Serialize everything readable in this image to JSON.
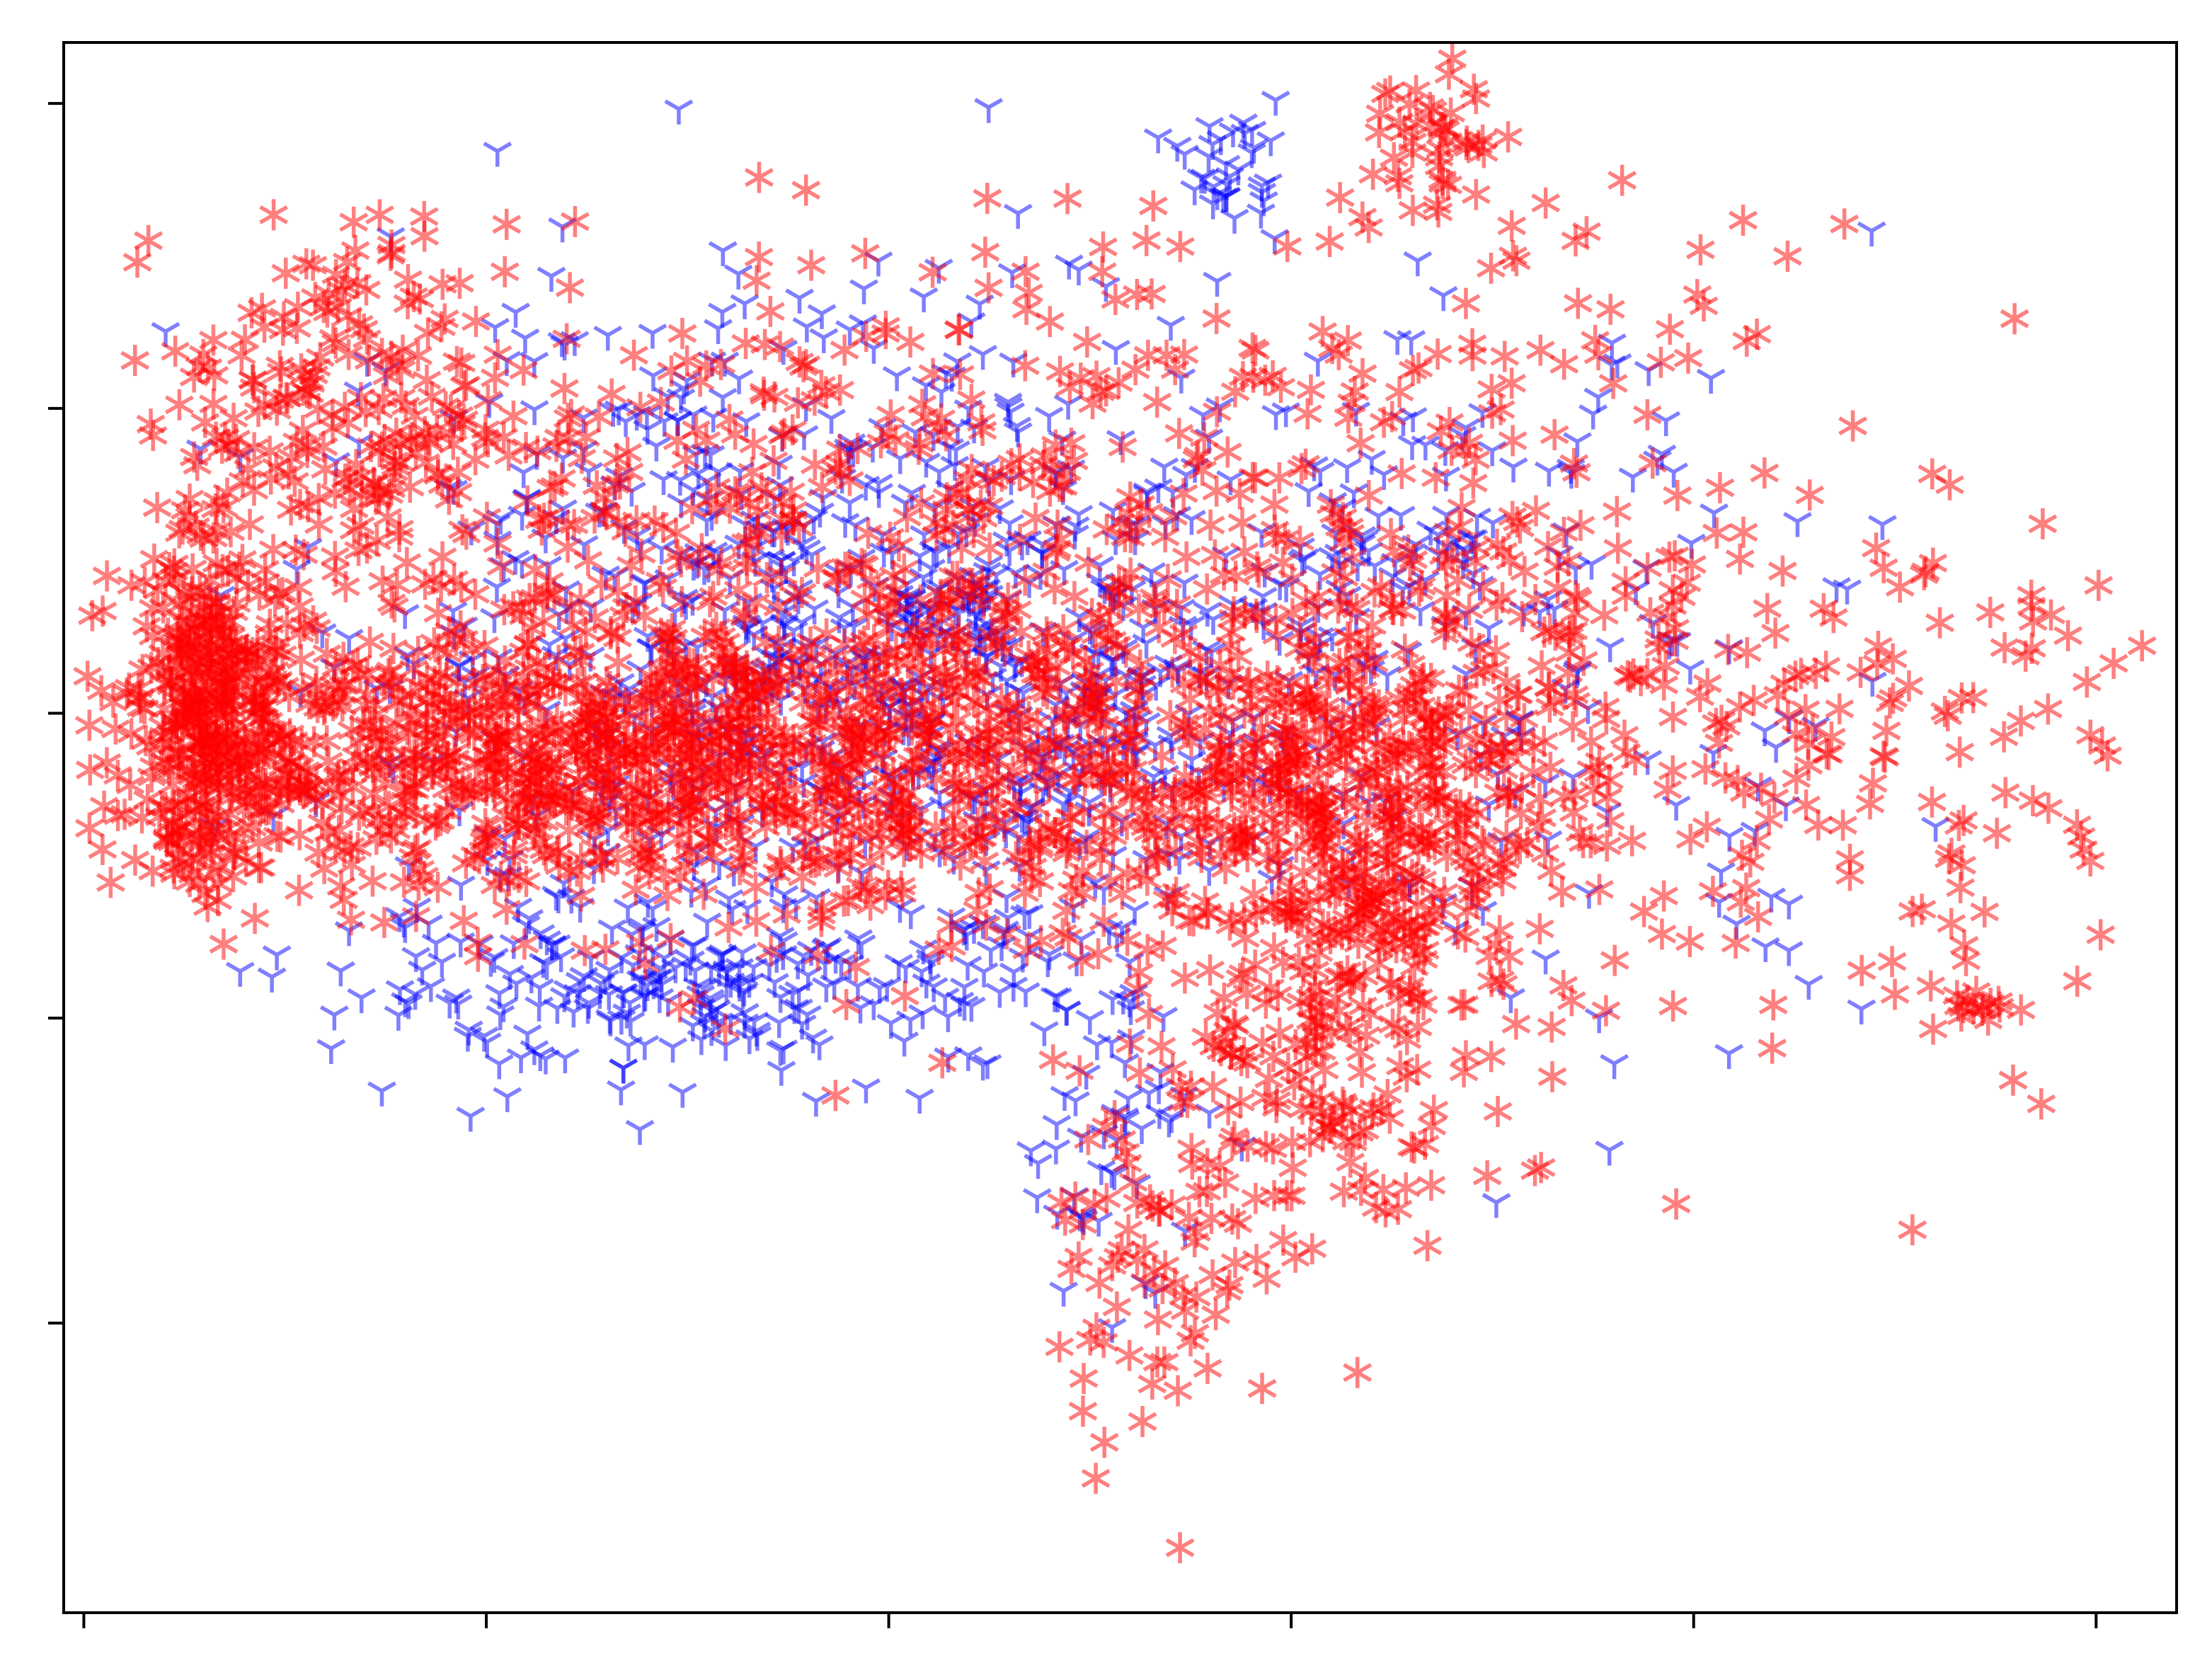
{
  "chart_data": {
    "type": "scatter",
    "title": "",
    "xlabel": "",
    "ylabel": "",
    "xlim": [
      -0.05,
      5.2
    ],
    "ylim": [
      -0.45,
      4.7
    ],
    "x_ticks": [
      0,
      1,
      2,
      3,
      4,
      5
    ],
    "y_ticks": [
      0.5,
      1.5,
      2.5,
      3.5,
      4.5
    ],
    "tick_labels_shown": false,
    "grid": false,
    "legend": "none",
    "series": [
      {
        "marker": "tri_down",
        "color": "#0000ff",
        "alpha": 0.5,
        "clusters": [
          {
            "cx": 1.7,
            "cy": 2.85,
            "sx": 0.55,
            "sy": 0.55,
            "n": 520
          },
          {
            "cx": 1.55,
            "cy": 1.6,
            "sx": 0.5,
            "sy": 0.14,
            "n": 260
          },
          {
            "cx": 2.4,
            "cy": 2.6,
            "sx": 0.5,
            "sy": 0.4,
            "n": 320
          },
          {
            "cx": 2.85,
            "cy": 4.3,
            "sx": 0.06,
            "sy": 0.1,
            "n": 35
          },
          {
            "cx": 2.55,
            "cy": 1.1,
            "sx": 0.12,
            "sy": 0.25,
            "n": 45
          },
          {
            "cx": 3.4,
            "cy": 3.0,
            "sx": 0.3,
            "sy": 0.35,
            "n": 110
          },
          {
            "cx": 3.9,
            "cy": 2.1,
            "sx": 0.45,
            "sy": 0.6,
            "n": 60
          }
        ]
      },
      {
        "marker": "asterisk",
        "color": "#ff0000",
        "alpha": 0.5,
        "clusters": [
          {
            "cx": 0.32,
            "cy": 2.5,
            "sx": 0.09,
            "sy": 0.28,
            "n": 320
          },
          {
            "cx": 1.2,
            "cy": 2.35,
            "sx": 0.65,
            "sy": 0.22,
            "n": 950
          },
          {
            "cx": 1.9,
            "cy": 3.1,
            "sx": 0.9,
            "sy": 0.45,
            "n": 650
          },
          {
            "cx": 0.65,
            "cy": 3.5,
            "sx": 0.2,
            "sy": 0.3,
            "n": 170
          },
          {
            "cx": 2.5,
            "cy": 2.3,
            "sx": 0.6,
            "sy": 0.35,
            "n": 450
          },
          {
            "cx": 3.15,
            "cy": 2.2,
            "sx": 0.22,
            "sy": 0.35,
            "n": 320
          },
          {
            "cx": 3.05,
            "cy": 1.4,
            "sx": 0.18,
            "sy": 0.35,
            "n": 170
          },
          {
            "cx": 2.65,
            "cy": 0.7,
            "sx": 0.12,
            "sy": 0.3,
            "n": 75
          },
          {
            "cx": 3.35,
            "cy": 4.35,
            "sx": 0.08,
            "sy": 0.18,
            "n": 45
          },
          {
            "cx": 4.35,
            "cy": 2.3,
            "sx": 0.55,
            "sy": 0.55,
            "n": 190
          },
          {
            "cx": 3.55,
            "cy": 2.95,
            "sx": 0.35,
            "sy": 0.55,
            "n": 140
          },
          {
            "cx": 4.7,
            "cy": 1.55,
            "sx": 0.05,
            "sy": 0.05,
            "n": 14
          }
        ]
      }
    ]
  }
}
